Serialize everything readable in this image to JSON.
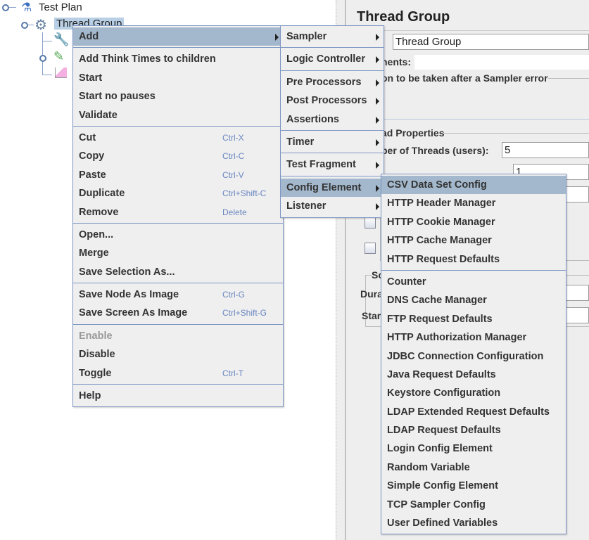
{
  "tree": {
    "root": {
      "label": "Test Plan",
      "icon": "flask-icon"
    },
    "selected": {
      "label": "Thread Group",
      "icon": "gear-icon"
    },
    "children": [
      {
        "icon": "tools-icon"
      },
      {
        "icon": "pipette-icon"
      },
      {
        "icon": "graph-icon"
      }
    ]
  },
  "panel": {
    "title": "Thread Group",
    "name_label": ":",
    "name_value": "Thread Group",
    "comments_label": "nents:",
    "action_label": "on to be taken after a Sampler error",
    "thread_props_label": "ad Properties",
    "threads_label": "ber of Threads (users):",
    "threads_value": "5",
    "rampup_value": "1",
    "scheduler_label": "Sch",
    "duration_label": "Dura",
    "startup_label": "Star"
  },
  "context_menu": [
    {
      "label": "Add",
      "submenu": true,
      "highlighted": true
    },
    {
      "separator": true
    },
    {
      "label": "Add Think Times to children"
    },
    {
      "label": "Start"
    },
    {
      "label": "Start no pauses"
    },
    {
      "label": "Validate"
    },
    {
      "separator": true
    },
    {
      "label": "Cut",
      "shortcut": "Ctrl-X"
    },
    {
      "label": "Copy",
      "shortcut": "Ctrl-C"
    },
    {
      "label": "Paste",
      "shortcut": "Ctrl-V"
    },
    {
      "label": "Duplicate",
      "shortcut": "Ctrl+Shift-C"
    },
    {
      "label": "Remove",
      "shortcut": "Delete"
    },
    {
      "separator": true
    },
    {
      "label": "Open..."
    },
    {
      "label": "Merge"
    },
    {
      "label": "Save Selection As..."
    },
    {
      "separator": true
    },
    {
      "label": "Save Node As Image",
      "shortcut": "Ctrl-G"
    },
    {
      "label": "Save Screen As Image",
      "shortcut": "Ctrl+Shift-G"
    },
    {
      "separator": true
    },
    {
      "label": "Enable",
      "disabled": true
    },
    {
      "label": "Disable"
    },
    {
      "label": "Toggle",
      "shortcut": "Ctrl-T"
    },
    {
      "separator": true
    },
    {
      "label": "Help"
    }
  ],
  "add_submenu": [
    {
      "label": "Sampler",
      "submenu": true
    },
    {
      "separator": true
    },
    {
      "label": "Logic Controller",
      "submenu": true
    },
    {
      "separator": true
    },
    {
      "label": "Pre Processors",
      "submenu": true
    },
    {
      "label": "Post Processors",
      "submenu": true
    },
    {
      "label": "Assertions",
      "submenu": true
    },
    {
      "separator": true
    },
    {
      "label": "Timer",
      "submenu": true
    },
    {
      "separator": true
    },
    {
      "label": "Test Fragment",
      "submenu": true
    },
    {
      "separator": true
    },
    {
      "label": "Config Element",
      "submenu": true,
      "highlighted": true
    },
    {
      "label": "Listener",
      "submenu": true
    }
  ],
  "config_submenu": [
    {
      "label": "CSV Data Set Config",
      "highlighted": true
    },
    {
      "label": "HTTP Header Manager"
    },
    {
      "label": "HTTP Cookie Manager"
    },
    {
      "label": "HTTP Cache Manager"
    },
    {
      "label": "HTTP Request Defaults"
    },
    {
      "separator": true
    },
    {
      "label": "Counter"
    },
    {
      "label": "DNS Cache Manager"
    },
    {
      "label": "FTP Request Defaults"
    },
    {
      "label": "HTTP Authorization Manager"
    },
    {
      "label": "JDBC Connection Configuration"
    },
    {
      "label": "Java Request Defaults"
    },
    {
      "label": "Keystore Configuration"
    },
    {
      "label": "LDAP Extended Request Defaults"
    },
    {
      "label": "LDAP Request Defaults"
    },
    {
      "label": "Login Config Element"
    },
    {
      "label": "Random Variable"
    },
    {
      "label": "Simple Config Element"
    },
    {
      "label": "TCP Sampler Config"
    },
    {
      "label": "User Defined Variables"
    }
  ],
  "colors": {
    "highlight": "#a3b8cc",
    "menu_border": "#7e97c4",
    "shortcut": "#6a86c0",
    "selection": "#b8cfe5"
  }
}
